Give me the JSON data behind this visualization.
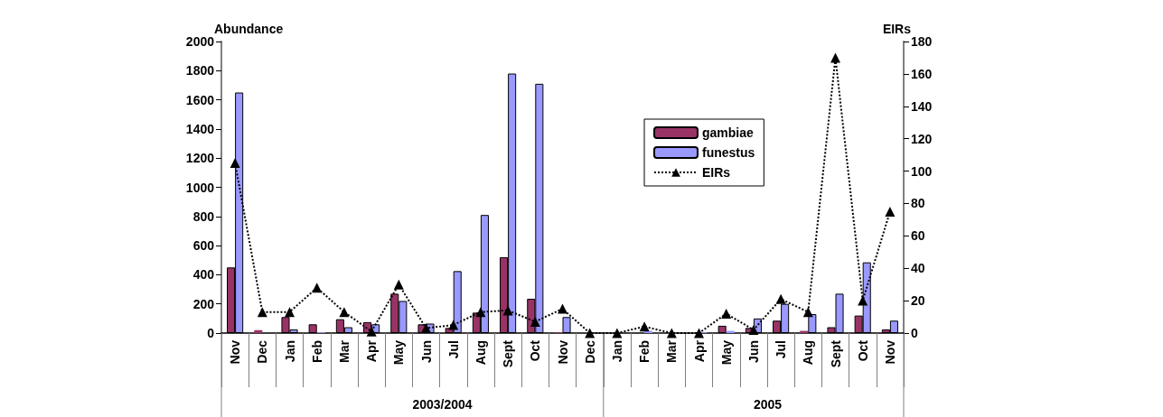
{
  "chart_data": {
    "type": "bar",
    "categories": [
      "Nov",
      "Dec",
      "Jan",
      "Feb",
      "Mar",
      "Apr",
      "May",
      "Jun",
      "Jul",
      "Aug",
      "Sept",
      "Oct",
      "Nov",
      "Dec",
      "Jan",
      "Feb",
      "Mar",
      "Apr",
      "May",
      "Jun",
      "Jul",
      "Aug",
      "Sept",
      "Oct",
      "Nov"
    ],
    "ylabel": "Abundance",
    "y2label": "EIRs",
    "ylim": [
      0,
      2000
    ],
    "yticks": [
      0,
      200,
      400,
      600,
      800,
      1000,
      1200,
      1400,
      1600,
      1800,
      2000
    ],
    "y2lim": [
      0,
      180
    ],
    "y2ticks": [
      0,
      20,
      40,
      60,
      80,
      100,
      120,
      140,
      160,
      180
    ],
    "series": [
      {
        "name": "gambiae",
        "color": "#993366",
        "values": [
          450,
          20,
          110,
          60,
          95,
          75,
          270,
          60,
          35,
          140,
          520,
          235,
          5,
          0,
          0,
          0,
          0,
          null,
          50,
          35,
          85,
          15,
          40,
          120,
          25
        ]
      },
      {
        "name": "funestus",
        "color": "#9999ff",
        "values": [
          1650,
          0,
          25,
          5,
          40,
          60,
          220,
          65,
          425,
          810,
          1780,
          1710,
          110,
          0,
          0,
          15,
          null,
          5,
          15,
          100,
          200,
          130,
          270,
          485,
          85
        ]
      },
      {
        "name": "EIRs",
        "type": "line",
        "axis": "y2",
        "color": "#000000",
        "marker": "triangle",
        "line_style": "dotted",
        "values": [
          105,
          13,
          13,
          28,
          13,
          1,
          30,
          3,
          5,
          13,
          14,
          7,
          15,
          0,
          0,
          4,
          0,
          0,
          12,
          2,
          21,
          13,
          170,
          20,
          75
        ]
      }
    ],
    "annotations": [
      "2003/2004",
      "2005"
    ],
    "legend": "top",
    "grid": false
  }
}
